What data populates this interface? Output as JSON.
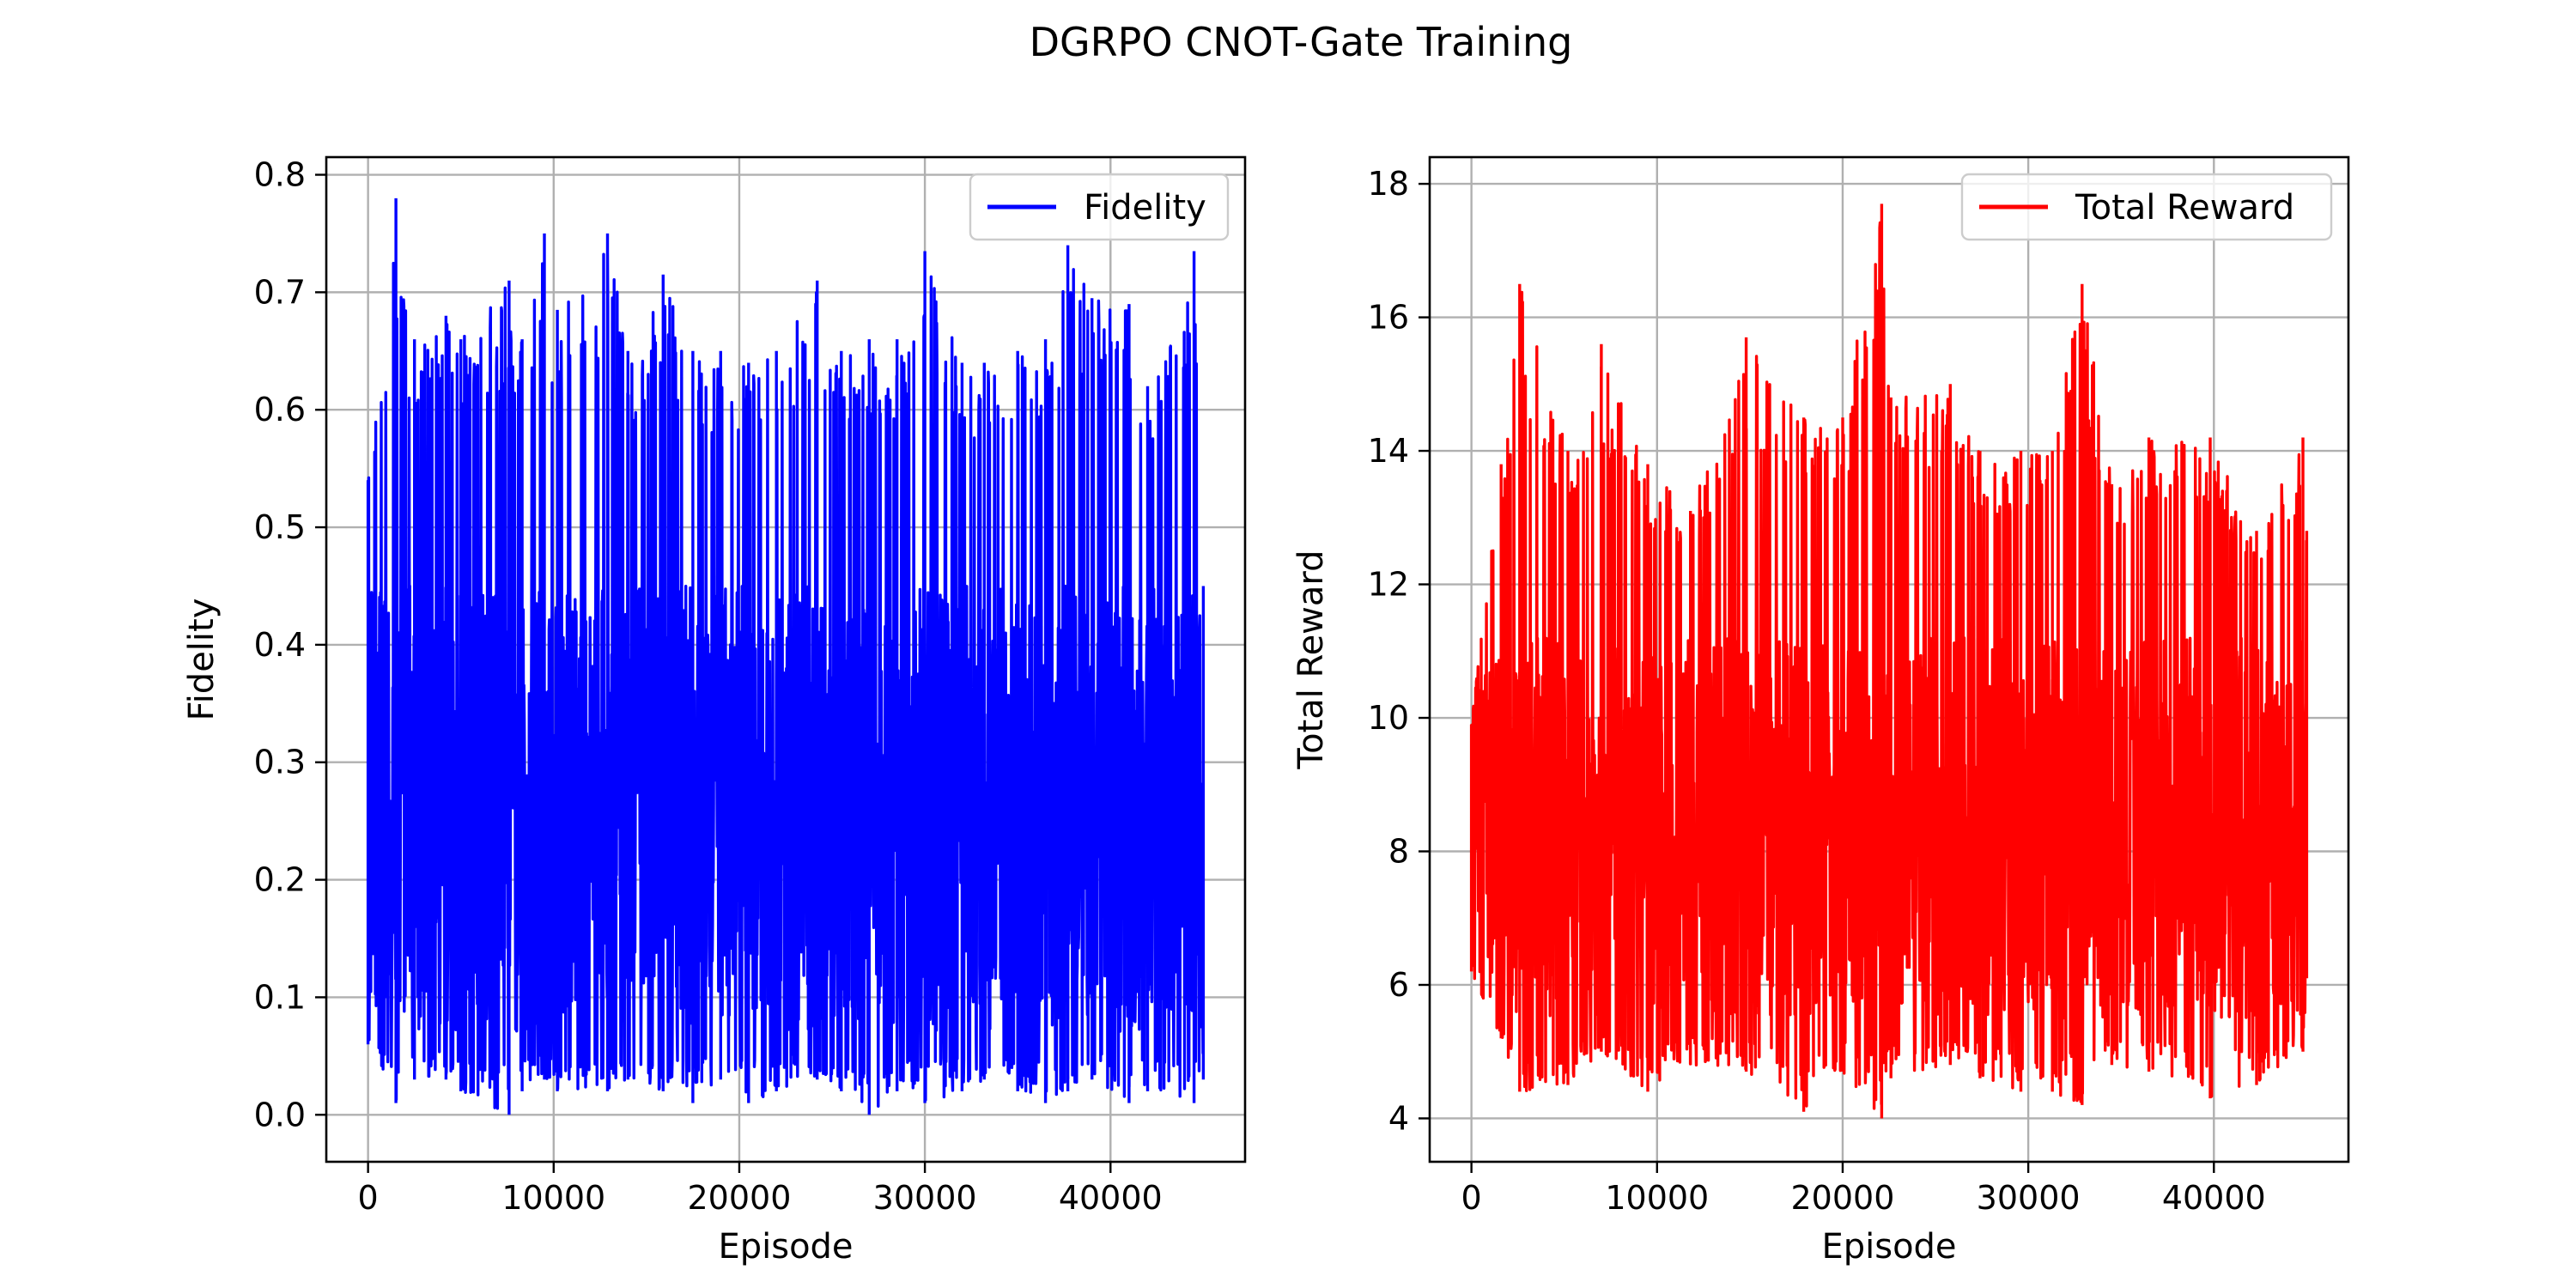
{
  "figure": {
    "suptitle": "DGRPO CNOT-Gate Training"
  },
  "chart_data": [
    {
      "type": "line",
      "title": "",
      "xlabel": "Episode",
      "ylabel": "Fidelity",
      "xlim": [
        -2250,
        47250
      ],
      "ylim": [
        -0.04,
        0.815
      ],
      "xticks": [
        0,
        10000,
        20000,
        30000,
        40000
      ],
      "xtick_labels": [
        "0",
        "10000",
        "20000",
        "30000",
        "40000"
      ],
      "yticks": [
        0.0,
        0.1,
        0.2,
        0.3,
        0.4,
        0.5,
        0.6,
        0.7,
        0.8
      ],
      "ytick_labels": [
        "0.0",
        "0.1",
        "0.2",
        "0.3",
        "0.4",
        "0.5",
        "0.6",
        "0.7",
        "0.8"
      ],
      "grid": true,
      "legend_position": "top-right",
      "series": [
        {
          "name": "Fidelity",
          "color": "#0000ff",
          "x_range": [
            0,
            45000
          ],
          "num_points": 45000,
          "x": [
            0,
            1500,
            2500,
            4200,
            5000,
            7600,
            8300,
            9500,
            10200,
            12900,
            14000,
            15900,
            17500,
            19000,
            20500,
            22000,
            24200,
            25500,
            27000,
            28500,
            30000,
            32000,
            33200,
            35000,
            36500,
            37700,
            39000,
            41000,
            42000,
            44500,
            45000
          ],
          "y_max": [
            0.54,
            0.78,
            0.66,
            0.68,
            0.66,
            0.71,
            0.66,
            0.75,
            0.685,
            0.75,
            0.65,
            0.715,
            0.65,
            0.65,
            0.64,
            0.65,
            0.71,
            0.65,
            0.66,
            0.66,
            0.735,
            0.64,
            0.64,
            0.65,
            0.66,
            0.74,
            0.695,
            0.69,
            0.62,
            0.735,
            0.45
          ],
          "y_min": [
            0.06,
            0.01,
            0.03,
            0.03,
            0.02,
            0.0,
            0.02,
            0.03,
            0.02,
            0.02,
            0.03,
            0.02,
            0.01,
            0.03,
            0.01,
            0.02,
            0.03,
            0.02,
            0.0,
            0.02,
            0.01,
            0.02,
            0.03,
            0.02,
            0.01,
            0.02,
            0.03,
            0.01,
            0.02,
            0.01,
            0.03
          ],
          "typical_band": [
            0.07,
            0.45
          ]
        }
      ]
    },
    {
      "type": "line",
      "title": "",
      "xlabel": "Episode",
      "ylabel": "Total Reward",
      "xlim": [
        -2250,
        47250
      ],
      "ylim": [
        3.35,
        18.4
      ],
      "xticks": [
        0,
        10000,
        20000,
        30000,
        40000
      ],
      "xtick_labels": [
        "0",
        "10000",
        "20000",
        "30000",
        "40000"
      ],
      "yticks": [
        4,
        6,
        8,
        10,
        12,
        14,
        16,
        18
      ],
      "ytick_labels": [
        "4",
        "6",
        "8",
        "10",
        "12",
        "14",
        "16",
        "18"
      ],
      "grid": true,
      "legend_position": "top-right",
      "series": [
        {
          "name": "Total Reward",
          "color": "#ff0000",
          "x_range": [
            0,
            45000
          ],
          "num_points": 45000,
          "x": [
            0,
            1600,
            2600,
            5200,
            7000,
            9500,
            11800,
            14800,
            17900,
            20000,
            22100,
            22600,
            25800,
            27400,
            29600,
            31300,
            32900,
            34500,
            36500,
            39800,
            42300,
            44800,
            45000
          ],
          "y_max": [
            9.9,
            13.8,
            16.5,
            14.0,
            15.6,
            13.8,
            13.1,
            15.7,
            14.5,
            14.5,
            17.7,
            14.8,
            15.0,
            14.0,
            14.0,
            14.0,
            16.5,
            13.5,
            14.2,
            14.2,
            12.8,
            14.2,
            12.8
          ],
          "y_min": [
            6.2,
            5.2,
            4.4,
            4.5,
            5.0,
            4.4,
            4.8,
            4.7,
            4.1,
            4.7,
            4.0,
            4.6,
            4.8,
            4.6,
            4.4,
            4.4,
            4.2,
            4.8,
            4.7,
            4.3,
            4.5,
            5.0,
            6.1
          ],
          "typical_band": [
            5.5,
            11.2
          ]
        }
      ]
    }
  ]
}
